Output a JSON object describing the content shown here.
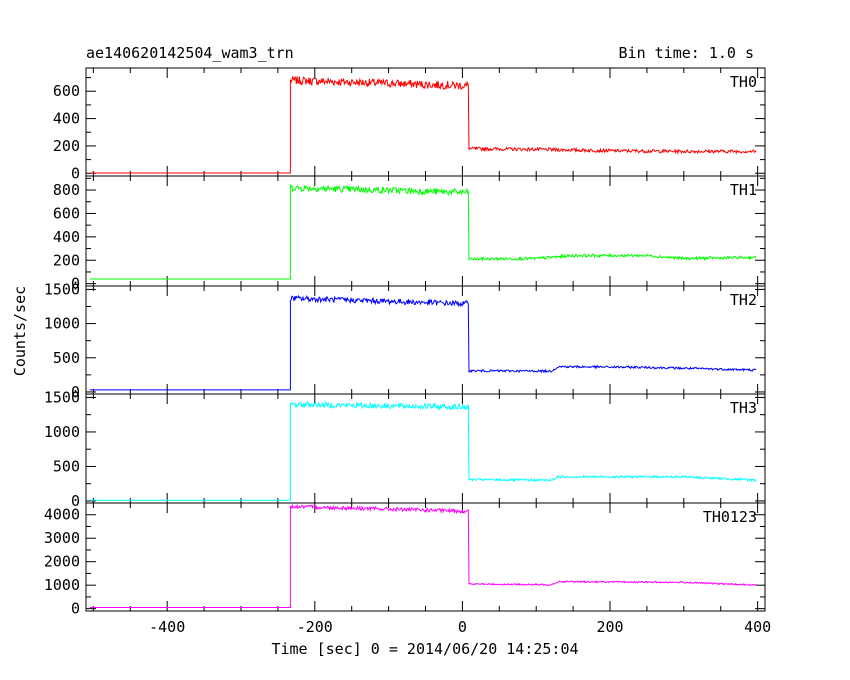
{
  "header": {
    "title_left": "ae140620142504_wam3_trn",
    "title_right": "Bin time: 1.0 s"
  },
  "chart_data": {
    "type": "line",
    "xlabel": "Time [sec] 0 = 2014/06/20 14:25:04",
    "ylabel": "Counts/sec",
    "xlim": [
      -510,
      410
    ],
    "x_ticks": [
      -400,
      -200,
      0,
      200,
      400
    ],
    "panels": [
      {
        "name": "TH0",
        "color": "#ff0000",
        "ylim": [
          -20,
          770
        ],
        "yticks": [
          0,
          200,
          400,
          600
        ],
        "pre_level": 2,
        "rise_x": -233,
        "plateau_start": 680,
        "plateau_end": 640,
        "fall_x": 8,
        "post_levels": [
          [
            8,
            180
          ],
          [
            100,
            175
          ],
          [
            200,
            165
          ],
          [
            300,
            160
          ],
          [
            400,
            160
          ]
        ],
        "noise_high": 30,
        "noise_low": 12
      },
      {
        "name": "TH1",
        "color": "#00ff00",
        "ylim": [
          -20,
          920
        ],
        "yticks": [
          0,
          200,
          400,
          600,
          800
        ],
        "pre_level": 40,
        "rise_x": -233,
        "plateau_start": 820,
        "plateau_end": 780,
        "fall_x": 8,
        "post_levels": [
          [
            8,
            210
          ],
          [
            100,
            215
          ],
          [
            150,
            240
          ],
          [
            250,
            240
          ],
          [
            300,
            215
          ],
          [
            400,
            225
          ]
        ],
        "noise_high": 28,
        "noise_low": 12
      },
      {
        "name": "TH2",
        "color": "#0000ff",
        "ylim": [
          -30,
          1550
        ],
        "yticks": [
          0,
          500,
          1000,
          1500
        ],
        "pre_level": 30,
        "rise_x": -233,
        "plateau_start": 1370,
        "plateau_end": 1290,
        "fall_x": 8,
        "post_levels": [
          [
            8,
            310
          ],
          [
            120,
            305
          ],
          [
            130,
            370
          ],
          [
            250,
            360
          ],
          [
            400,
            320
          ]
        ],
        "noise_high": 40,
        "noise_low": 16
      },
      {
        "name": "TH3",
        "color": "#00ffff",
        "ylim": [
          -30,
          1550
        ],
        "yticks": [
          0,
          500,
          1000,
          1500
        ],
        "pre_level": 10,
        "rise_x": -233,
        "plateau_start": 1400,
        "plateau_end": 1360,
        "fall_x": 8,
        "post_levels": [
          [
            8,
            310
          ],
          [
            120,
            300
          ],
          [
            130,
            350
          ],
          [
            300,
            350
          ],
          [
            400,
            300
          ]
        ],
        "noise_high": 40,
        "noise_low": 16
      },
      {
        "name": "TH0123",
        "color": "#ff00ff",
        "ylim": [
          -100,
          4500
        ],
        "yticks": [
          0,
          1000,
          2000,
          3000,
          4000
        ],
        "pre_level": 50,
        "rise_x": -233,
        "plateau_start": 4350,
        "plateau_end": 4150,
        "fall_x": 8,
        "post_levels": [
          [
            8,
            1050
          ],
          [
            120,
            1020
          ],
          [
            130,
            1150
          ],
          [
            300,
            1120
          ],
          [
            400,
            1000
          ]
        ],
        "noise_high": 80,
        "noise_low": 30
      }
    ]
  }
}
